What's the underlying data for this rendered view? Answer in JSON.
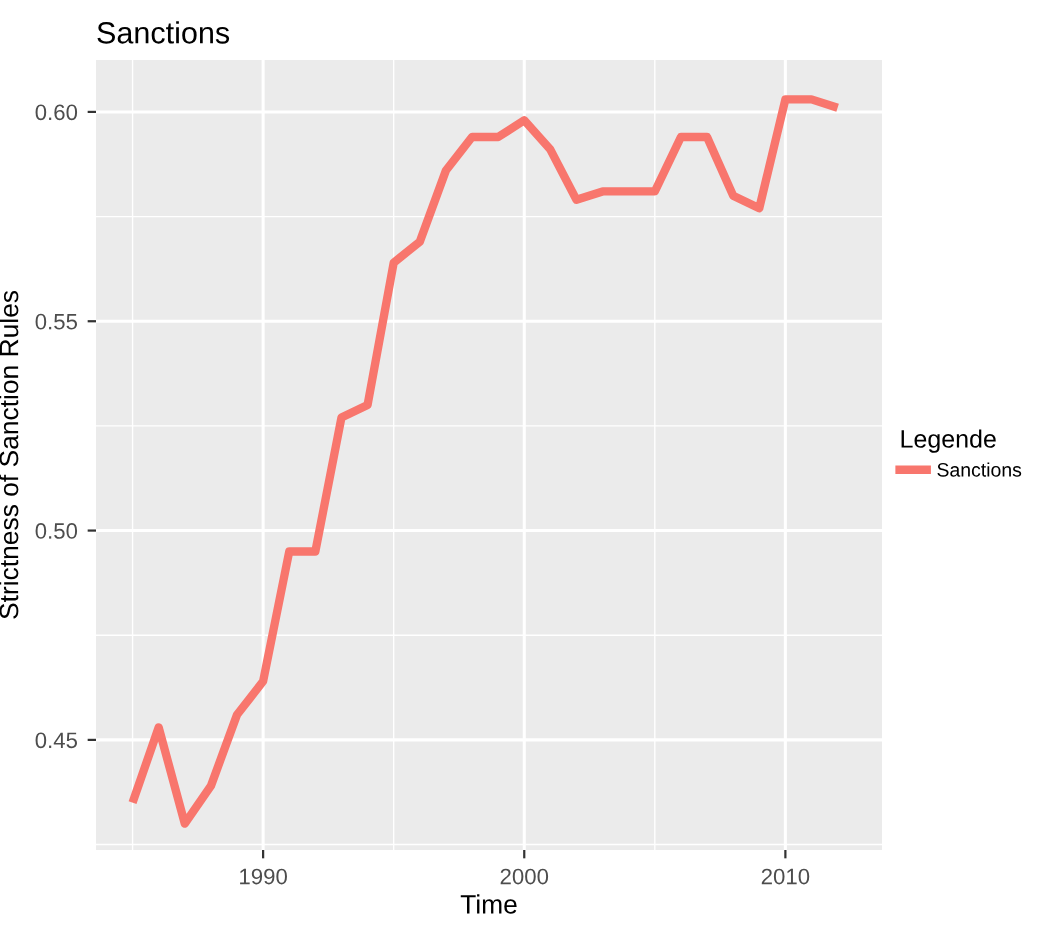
{
  "chart_data": {
    "type": "line",
    "title": "Sanctions",
    "xlabel": "Time",
    "ylabel": "Strictness of Sanction Rules",
    "legend_title": "Legende",
    "legend": "right",
    "grid": true,
    "x": [
      1985,
      1986,
      1987,
      1988,
      1989,
      1990,
      1991,
      1992,
      1993,
      1994,
      1995,
      1996,
      1997,
      1998,
      1999,
      2000,
      2001,
      2002,
      2003,
      2004,
      2005,
      2006,
      2007,
      2008,
      2009,
      2010,
      2011,
      2012
    ],
    "series": [
      {
        "name": "Sanctions",
        "color": "#f8766d",
        "values": [
          0.435,
          0.453,
          0.43,
          0.439,
          0.456,
          0.464,
          0.495,
          0.495,
          0.527,
          0.53,
          0.564,
          0.569,
          0.586,
          0.594,
          0.594,
          0.598,
          0.591,
          0.579,
          0.581,
          0.581,
          0.581,
          0.594,
          0.594,
          0.58,
          0.577,
          0.603,
          0.603,
          0.601
        ]
      }
    ],
    "xlim": [
      1983.6,
      2013.7
    ],
    "ylim": [
      0.4237,
      0.6124
    ],
    "xticks": [
      1990,
      2000,
      2010
    ],
    "yticks": [
      0.45,
      {
        "value": 0.5,
        "label": "0.50"
      },
      0.55,
      {
        "value": 0.6,
        "label": "0.60"
      }
    ]
  }
}
